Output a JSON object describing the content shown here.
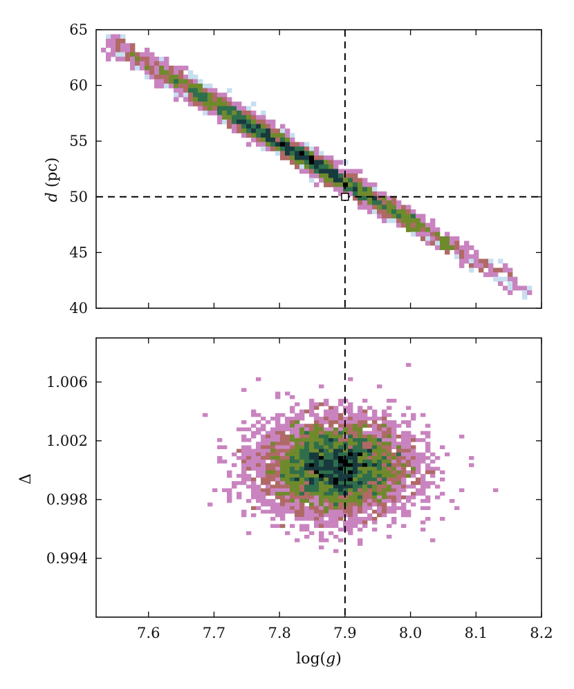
{
  "chart_data": [
    {
      "type": "heatmap",
      "panel": "top",
      "ylabel_italic": "d",
      "ylabel_rest": " (pc)",
      "xlim": [
        7.52,
        8.2
      ],
      "ylim": [
        40,
        65
      ],
      "yticks": [
        40,
        45,
        50,
        55,
        60,
        65
      ],
      "yticklabels": [
        "40",
        "45",
        "50",
        "55",
        "60",
        "65"
      ],
      "reference_lines": {
        "x": 7.9,
        "y": 50
      },
      "marker": {
        "x": 7.9,
        "y": 50,
        "shape": "white-square"
      },
      "distribution": {
        "shape": "narrow diagonal band",
        "x_range": [
          7.55,
          8.17
        ],
        "y_range": [
          41.8,
          63.7
        ],
        "peak": [
          7.88,
          50.5
        ]
      },
      "colormap": [
        "#c6dff0",
        "#c984c0",
        "#b06a66",
        "#6f8a2c",
        "#2f6e4c",
        "#173a3e",
        "#000000"
      ]
    },
    {
      "type": "heatmap",
      "panel": "bottom",
      "ylabel": "Δ",
      "xlabel_pre": "log(",
      "xlabel_italic": "g",
      "xlabel_post": ")",
      "xlim": [
        7.52,
        8.2
      ],
      "ylim": [
        0.99,
        1.009
      ],
      "xticks": [
        7.6,
        7.7,
        7.8,
        7.9,
        8.0,
        8.1,
        8.2
      ],
      "xticklabels": [
        "7.6",
        "7.7",
        "7.8",
        "7.9",
        "8.0",
        "8.1",
        "8.2"
      ],
      "yticks": [
        0.994,
        0.998,
        1.002,
        1.006
      ],
      "yticklabels": [
        "0.994",
        "0.998",
        "1.002",
        "1.006"
      ],
      "reference_lines": {
        "x": 7.9
      },
      "distribution": {
        "shape": "elliptical cloud",
        "center": [
          7.885,
          1.0002
        ],
        "x_range": [
          7.59,
          8.11
        ],
        "y_range": [
          0.993,
          1.0063
        ]
      },
      "colormap": [
        "#c6dff0",
        "#c984c0",
        "#b06a66",
        "#6f8a2c",
        "#2f6e4c",
        "#173a3e",
        "#000000"
      ]
    }
  ]
}
